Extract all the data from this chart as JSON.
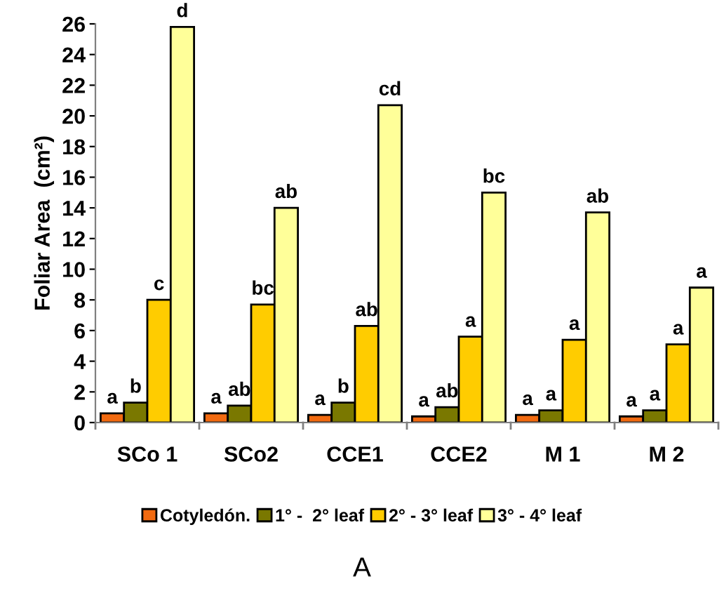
{
  "chart_data": {
    "type": "bar",
    "ylabel": "Foliar Area  (cm²)",
    "categories": [
      "SCo 1",
      "SCo2",
      "CCE1",
      "CCE2",
      "M 1",
      "M 2"
    ],
    "series": [
      {
        "name": "Cotyledón.",
        "color": "#f26a10",
        "values": [
          0.6,
          0.6,
          0.5,
          0.4,
          0.5,
          0.4
        ]
      },
      {
        "name": "1° -  2° leaf",
        "color": "#7a7800",
        "values": [
          1.3,
          1.1,
          1.3,
          1.0,
          0.8,
          0.8
        ]
      },
      {
        "name": "2° - 3° leaf",
        "color": "#ffcc00",
        "values": [
          8.0,
          7.7,
          6.3,
          5.6,
          5.4,
          5.1
        ]
      },
      {
        "name": "3° - 4° leaf",
        "color": "#ffff99",
        "values": [
          25.8,
          14.0,
          20.7,
          15.0,
          13.7,
          8.8
        ]
      }
    ],
    "ylim": [
      0,
      26
    ],
    "yticks": [
      0,
      2,
      4,
      6,
      8,
      10,
      12,
      14,
      16,
      18,
      20,
      22,
      24,
      26
    ],
    "grid": false,
    "legend": "bottom",
    "annotations": [
      "a",
      "b",
      "c",
      "d",
      "a",
      "ab",
      "bc",
      "ab",
      "a",
      "b",
      "ab",
      "cd",
      "a",
      "ab",
      "a",
      "bc",
      "a",
      "a",
      "a",
      "ab",
      "a",
      "a",
      "a",
      "a",
      "A"
    ]
  }
}
